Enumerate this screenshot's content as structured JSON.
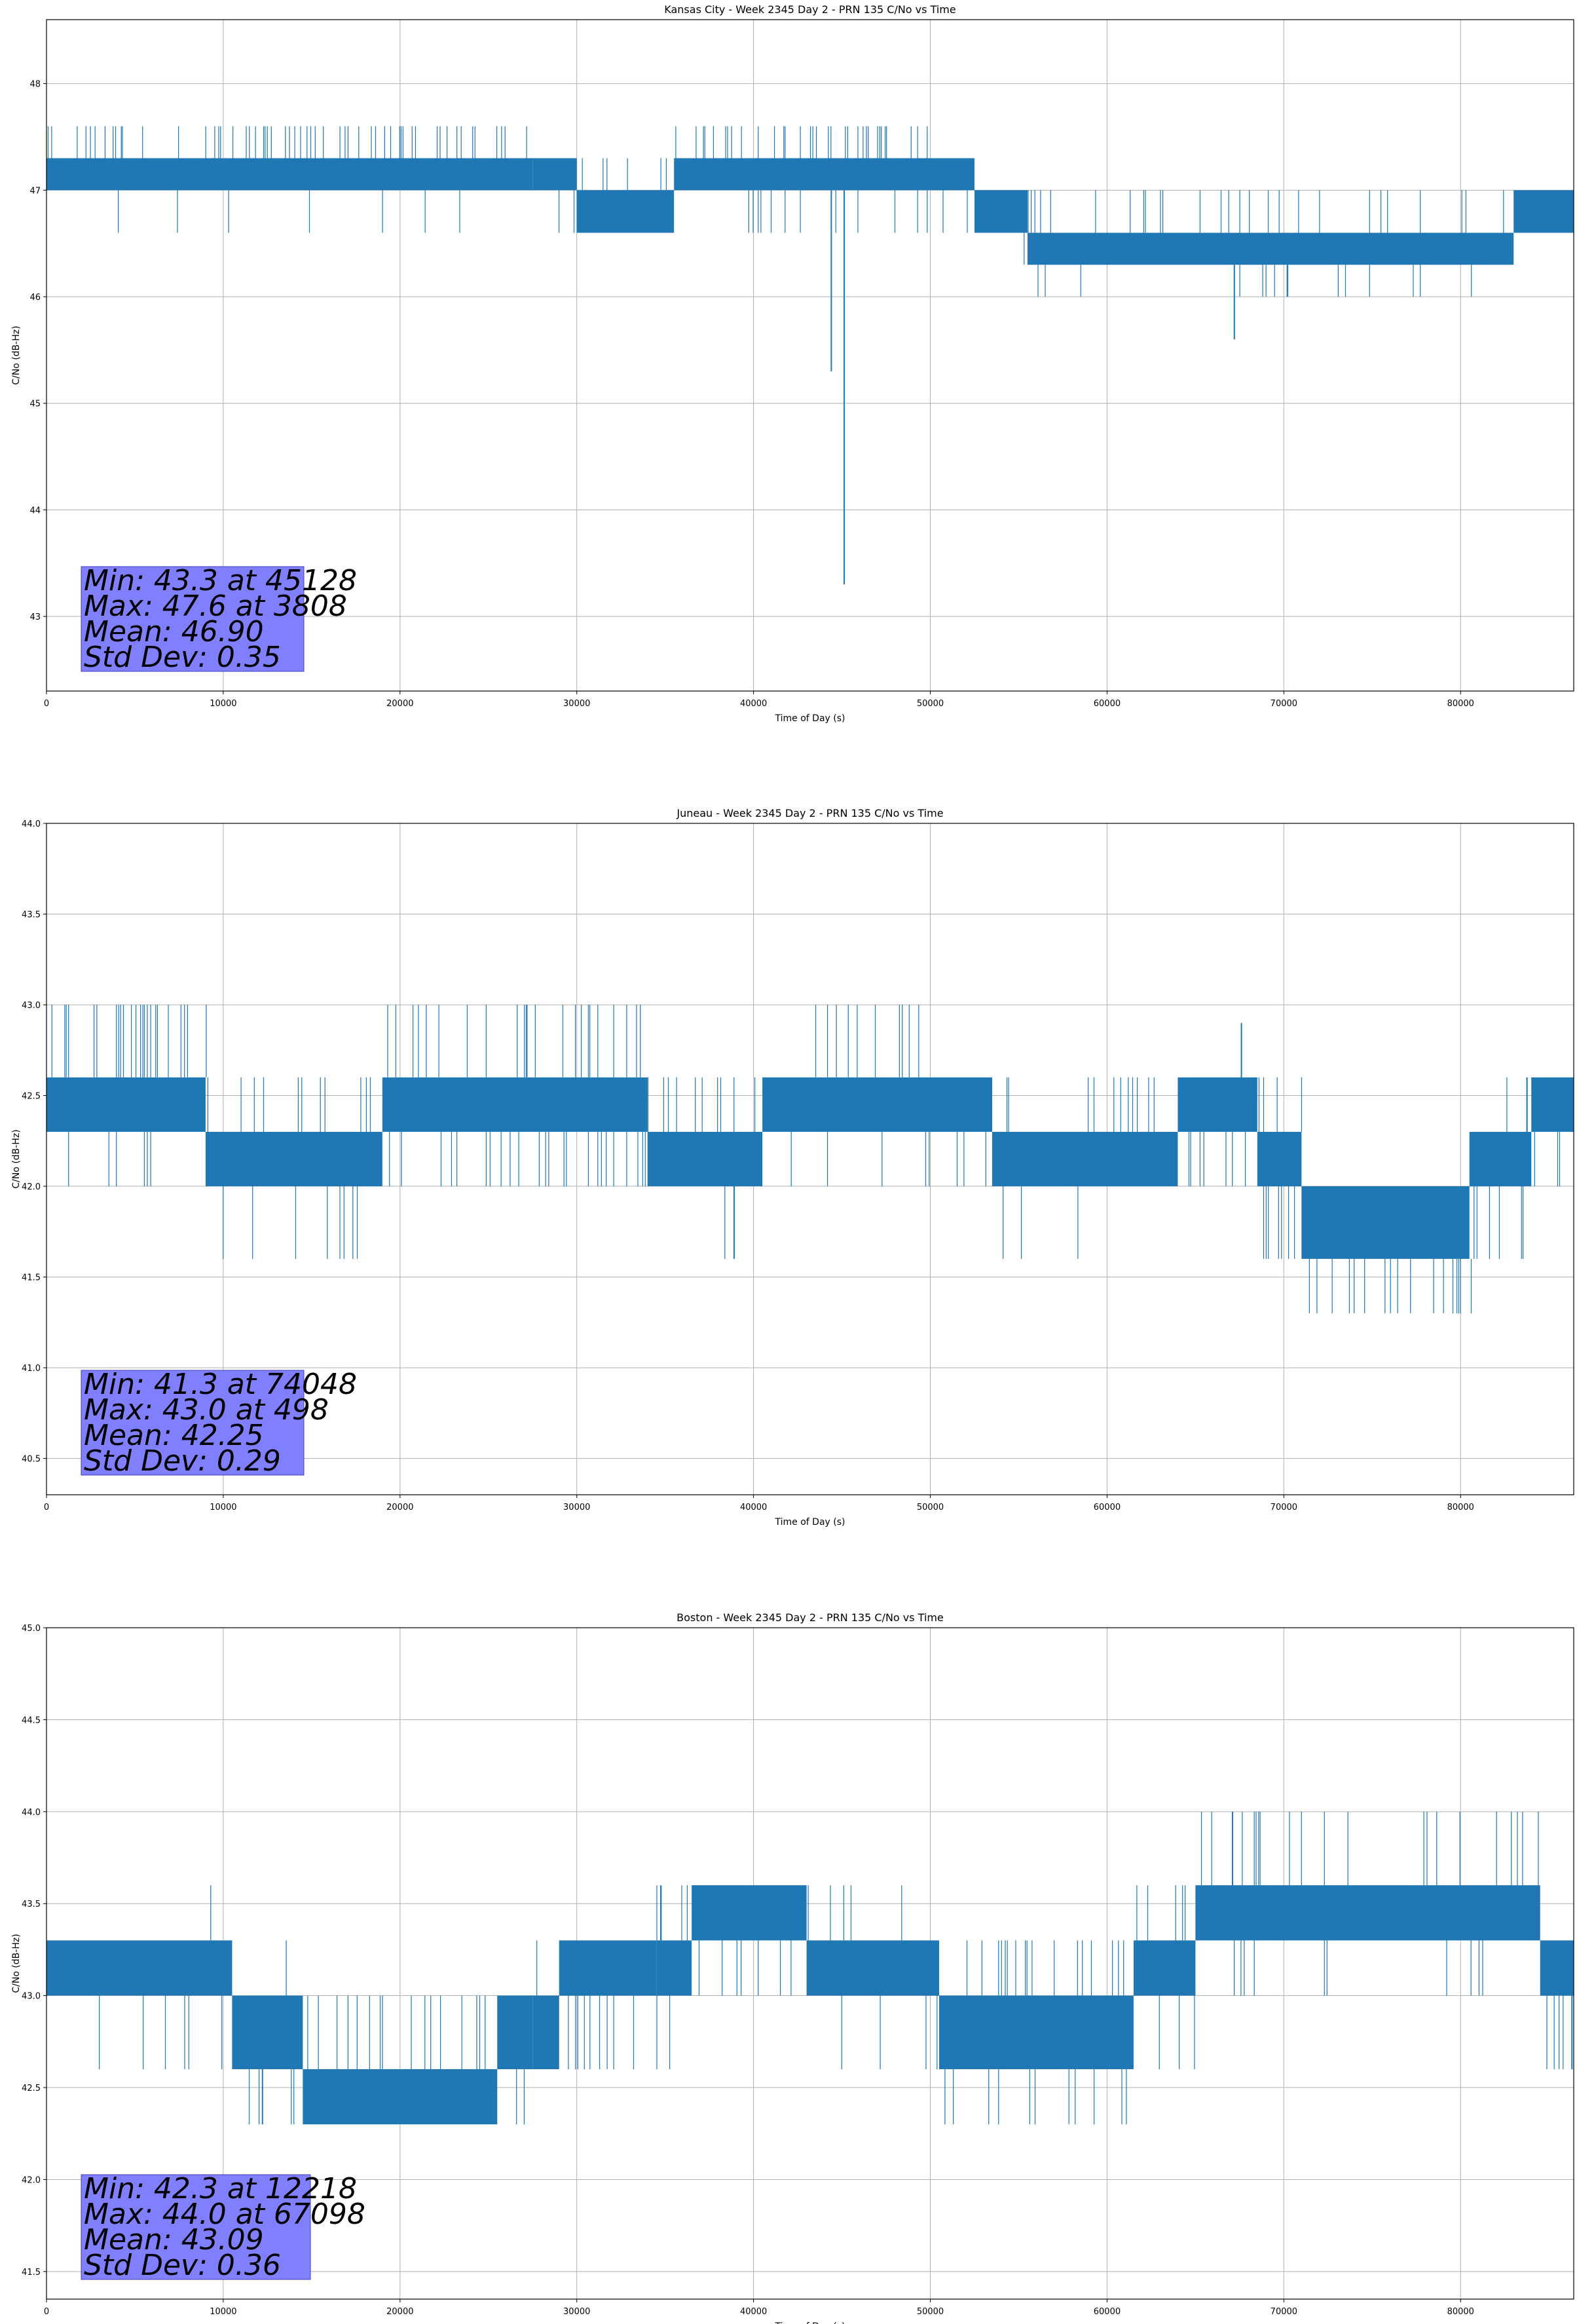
{
  "figure": {
    "colors": {
      "series": "#1f77b4",
      "grid": "#b0b0b0",
      "stats_box": "#8080ff"
    }
  },
  "chart_data": [
    {
      "type": "line",
      "title": "Kansas City - Week 2345 Day 2 - PRN 135 C/No vs Time",
      "xlabel": "Time of Day (s)",
      "ylabel": "C/No (dB-Hz)",
      "xlim": [
        0,
        86400
      ],
      "ylim": [
        42.3,
        48.6
      ],
      "xticks": [
        0,
        10000,
        20000,
        30000,
        40000,
        50000,
        60000,
        70000,
        80000
      ],
      "yticks": [
        43,
        44,
        45,
        46,
        47,
        48
      ],
      "ytick_decimals": 0,
      "grid": true,
      "legend": "none",
      "stats": [
        "Min: 43.3 at 45128",
        "Max: 47.6 at 3808",
        "Mean: 46.90",
        "Std Dev: 0.35"
      ],
      "segments": [
        {
          "x0": 0,
          "x1": 27500,
          "lo": 47.0,
          "hi": 47.3,
          "up": 47.6,
          "down": 46.6,
          "pu": 0.25,
          "pd": 0.05
        },
        {
          "x0": 27500,
          "x1": 30000,
          "lo": 47.0,
          "hi": 47.3,
          "up": 47.3,
          "down": 46.6,
          "pu": 0.0,
          "pd": 0.15
        },
        {
          "x0": 30000,
          "x1": 35500,
          "lo": 46.6,
          "hi": 47.0,
          "up": 47.3,
          "down": 46.6,
          "pu": 0.15,
          "pd": 0.0
        },
        {
          "x0": 35500,
          "x1": 50000,
          "lo": 47.0,
          "hi": 47.3,
          "up": 47.6,
          "down": 46.6,
          "pu": 0.25,
          "pd": 0.08
        },
        {
          "x0": 50000,
          "x1": 52500,
          "lo": 47.0,
          "hi": 47.3,
          "up": 47.3,
          "down": 46.6,
          "pu": 0.1,
          "pd": 0.2
        },
        {
          "x0": 52500,
          "x1": 55500,
          "lo": 46.6,
          "hi": 47.0,
          "up": 47.0,
          "down": 46.3,
          "pu": 0.1,
          "pd": 0.1
        },
        {
          "x0": 55500,
          "x1": 83000,
          "lo": 46.3,
          "hi": 46.6,
          "up": 47.0,
          "down": 46.0,
          "pu": 0.12,
          "pd": 0.06
        },
        {
          "x0": 83000,
          "x1": 86400,
          "lo": 46.6,
          "hi": 47.0,
          "up": 47.0,
          "down": 46.3,
          "pu": 0.2,
          "pd": 0.1
        }
      ],
      "spikes": [
        [
          44400,
          45.3
        ],
        [
          45128,
          43.3
        ],
        [
          67200,
          45.6
        ]
      ]
    },
    {
      "type": "line",
      "title": "Juneau - Week 2345 Day 2 - PRN 135 C/No vs Time",
      "xlabel": "Time of Day (s)",
      "ylabel": "C/No (dB-Hz)",
      "xlim": [
        0,
        86400
      ],
      "ylim": [
        40.3,
        44.0
      ],
      "xticks": [
        0,
        10000,
        20000,
        30000,
        40000,
        50000,
        60000,
        70000,
        80000
      ],
      "yticks": [
        40.5,
        41.0,
        41.5,
        42.0,
        42.5,
        43.0,
        43.5,
        44.0
      ],
      "ytick_decimals": 1,
      "grid": true,
      "legend": "none",
      "stats": [
        "Min: 41.3 at 74048",
        "Max: 43.0 at 498",
        "Mean: 42.25",
        "Std Dev: 0.29"
      ],
      "segments": [
        {
          "x0": 0,
          "x1": 9000,
          "lo": 42.3,
          "hi": 42.6,
          "up": 43.0,
          "down": 42.0,
          "pu": 0.3,
          "pd": 0.05
        },
        {
          "x0": 9000,
          "x1": 19000,
          "lo": 42.0,
          "hi": 42.3,
          "up": 42.6,
          "down": 41.6,
          "pu": 0.15,
          "pd": 0.12
        },
        {
          "x0": 19000,
          "x1": 34000,
          "lo": 42.3,
          "hi": 42.6,
          "up": 43.0,
          "down": 42.0,
          "pu": 0.22,
          "pd": 0.2
        },
        {
          "x0": 34000,
          "x1": 40500,
          "lo": 42.0,
          "hi": 42.3,
          "up": 42.6,
          "down": 41.6,
          "pu": 0.25,
          "pd": 0.03
        },
        {
          "x0": 40500,
          "x1": 50500,
          "lo": 42.3,
          "hi": 42.6,
          "up": 43.0,
          "down": 42.0,
          "pu": 0.15,
          "pd": 0.15
        },
        {
          "x0": 50500,
          "x1": 53500,
          "lo": 42.3,
          "hi": 42.6,
          "up": 42.6,
          "down": 42.0,
          "pu": 0.0,
          "pd": 0.2
        },
        {
          "x0": 53500,
          "x1": 64000,
          "lo": 42.0,
          "hi": 42.3,
          "up": 42.6,
          "down": 41.6,
          "pu": 0.2,
          "pd": 0.04
        },
        {
          "x0": 64000,
          "x1": 68500,
          "lo": 42.3,
          "hi": 42.6,
          "up": 42.9,
          "down": 42.0,
          "pu": 0.03,
          "pd": 0.2
        },
        {
          "x0": 68500,
          "x1": 71000,
          "lo": 42.0,
          "hi": 42.3,
          "up": 42.6,
          "down": 41.6,
          "pu": 0.1,
          "pd": 0.2
        },
        {
          "x0": 71000,
          "x1": 80500,
          "lo": 41.6,
          "hi": 42.0,
          "up": 42.0,
          "down": 41.3,
          "pu": 0.0,
          "pd": 0.18
        },
        {
          "x0": 80500,
          "x1": 84000,
          "lo": 42.0,
          "hi": 42.3,
          "up": 42.6,
          "down": 41.6,
          "pu": 0.15,
          "pd": 0.15
        },
        {
          "x0": 84000,
          "x1": 86400,
          "lo": 42.3,
          "hi": 42.6,
          "up": 42.6,
          "down": 42.0,
          "pu": 0.05,
          "pd": 0.2
        }
      ],
      "spikes": [
        [
          38900,
          41.6
        ],
        [
          67600,
          42.9
        ]
      ]
    },
    {
      "type": "line",
      "title": "Boston - Week 2345 Day 2 - PRN 135 C/No vs Time",
      "xlabel": "Time of Day (s)",
      "ylabel": "C/No (dB-Hz)",
      "xlim": [
        0,
        86400
      ],
      "ylim": [
        41.35,
        45.0
      ],
      "xticks": [
        0,
        10000,
        20000,
        30000,
        40000,
        50000,
        60000,
        70000,
        80000
      ],
      "yticks": [
        41.5,
        42.0,
        42.5,
        43.0,
        43.5,
        44.0,
        44.5,
        45.0
      ],
      "ytick_decimals": 1,
      "grid": true,
      "legend": "none",
      "stats": [
        "Min: 42.3 at 12218",
        "Max: 44.0 at 67098",
        "Mean: 43.09",
        "Std Dev: 0.36"
      ],
      "segments": [
        {
          "x0": 0,
          "x1": 10500,
          "lo": 43.0,
          "hi": 43.3,
          "up": 43.6,
          "down": 42.6,
          "pu": 0.03,
          "pd": 0.08
        },
        {
          "x0": 10500,
          "x1": 14500,
          "lo": 42.6,
          "hi": 43.0,
          "up": 43.3,
          "down": 42.3,
          "pu": 0.1,
          "pd": 0.1
        },
        {
          "x0": 14500,
          "x1": 25500,
          "lo": 42.3,
          "hi": 42.6,
          "up": 43.0,
          "down": 42.3,
          "pu": 0.2,
          "pd": 0.0
        },
        {
          "x0": 25500,
          "x1": 27500,
          "lo": 42.6,
          "hi": 43.0,
          "up": 43.0,
          "down": 42.3,
          "pu": 0.0,
          "pd": 0.2
        },
        {
          "x0": 27500,
          "x1": 29000,
          "lo": 42.6,
          "hi": 43.0,
          "up": 43.3,
          "down": 42.6,
          "pu": 0.2,
          "pd": 0.0
        },
        {
          "x0": 29000,
          "x1": 34500,
          "lo": 43.0,
          "hi": 43.3,
          "up": 43.3,
          "down": 42.6,
          "pu": 0.0,
          "pd": 0.15
        },
        {
          "x0": 34500,
          "x1": 36500,
          "lo": 43.0,
          "hi": 43.3,
          "up": 43.6,
          "down": 42.6,
          "pu": 0.2,
          "pd": 0.05
        },
        {
          "x0": 36500,
          "x1": 43000,
          "lo": 43.3,
          "hi": 43.6,
          "up": 43.6,
          "down": 43.0,
          "pu": 0.0,
          "pd": 0.2
        },
        {
          "x0": 43000,
          "x1": 50500,
          "lo": 43.0,
          "hi": 43.3,
          "up": 43.6,
          "down": 42.6,
          "pu": 0.15,
          "pd": 0.05
        },
        {
          "x0": 50500,
          "x1": 61500,
          "lo": 42.6,
          "hi": 43.0,
          "up": 43.3,
          "down": 42.3,
          "pu": 0.15,
          "pd": 0.12
        },
        {
          "x0": 61500,
          "x1": 65000,
          "lo": 43.0,
          "hi": 43.3,
          "up": 43.6,
          "down": 42.6,
          "pu": 0.2,
          "pd": 0.1
        },
        {
          "x0": 65000,
          "x1": 84500,
          "lo": 43.3,
          "hi": 43.6,
          "up": 44.0,
          "down": 43.0,
          "pu": 0.12,
          "pd": 0.05
        },
        {
          "x0": 84500,
          "x1": 86400,
          "lo": 43.0,
          "hi": 43.3,
          "up": 43.6,
          "down": 42.6,
          "pu": 0.1,
          "pd": 0.1
        }
      ],
      "spikes": [
        [
          12218,
          42.3
        ],
        [
          67098,
          44.0
        ],
        [
          86300,
          42.6
        ]
      ]
    }
  ]
}
